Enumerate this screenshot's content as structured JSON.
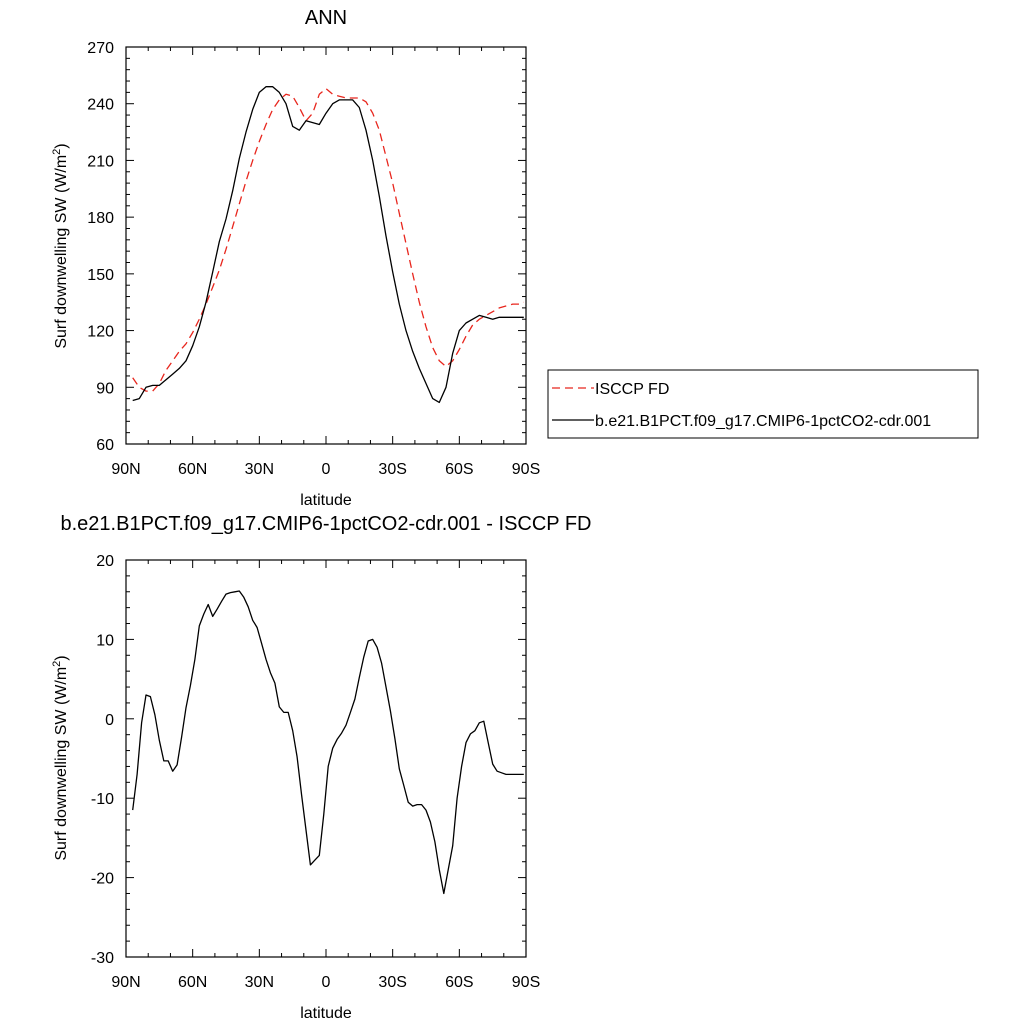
{
  "colors": {
    "obs": "#e8261d",
    "model": "#000000",
    "frame": "#000000"
  },
  "chart_data": [
    {
      "type": "line",
      "title": "ANN",
      "xlabel": "latitude",
      "ylabel": "Surf downwelling SW (W/m",
      "ylabel_superscript": "2",
      "ylabel_suffix": ")",
      "xlim": [
        90,
        -90
      ],
      "ylim": [
        60,
        270
      ],
      "xticks": [
        {
          "value": 90,
          "label": "90N"
        },
        {
          "value": 60,
          "label": "60N"
        },
        {
          "value": 30,
          "label": "30N"
        },
        {
          "value": 0,
          "label": "0"
        },
        {
          "value": -30,
          "label": "30S"
        },
        {
          "value": -60,
          "label": "60S"
        },
        {
          "value": -90,
          "label": "90S"
        }
      ],
      "yticks": [
        60,
        90,
        120,
        150,
        180,
        210,
        240,
        270
      ],
      "yticklabels": [
        "60",
        "90",
        "120",
        "150",
        "180",
        "210",
        "240",
        "270"
      ],
      "legend_position": "right",
      "series": [
        {
          "name": "ISCCP FD",
          "style": "dashed",
          "color": "#e8261d",
          "x": [
            87,
            84,
            81,
            78,
            75,
            72,
            69,
            66,
            63,
            60,
            57,
            54,
            51,
            48,
            45,
            42,
            39,
            36,
            33,
            30,
            27,
            24,
            21,
            18,
            15,
            12,
            9,
            6,
            3,
            0,
            -3,
            -6,
            -9,
            -12,
            -15,
            -18,
            -21,
            -24,
            -27,
            -30,
            -33,
            -36,
            -39,
            -42,
            -45,
            -48,
            -51,
            -54,
            -57,
            -60,
            -63,
            -66,
            -69,
            -72,
            -75,
            -78,
            -81,
            -84,
            -87,
            -89
          ],
          "y": [
            95,
            90,
            88,
            88,
            92,
            99,
            104,
            109,
            113,
            119,
            126,
            134,
            143,
            152,
            163,
            175,
            187,
            199,
            210,
            220,
            229,
            237,
            242,
            245,
            244,
            238,
            231,
            235,
            245,
            248,
            245,
            244,
            243,
            243,
            243,
            241,
            235,
            226,
            212,
            198,
            182,
            166,
            150,
            135,
            122,
            111,
            104,
            101,
            104,
            110,
            117,
            123,
            126,
            128,
            130,
            132,
            133,
            134,
            134,
            135
          ]
        },
        {
          "name": "b.e21.B1PCT.f09_g17.CMIP6-1pctCO2-cdr.001",
          "style": "solid",
          "color": "#000000",
          "x": [
            87,
            84,
            81,
            78,
            75,
            72,
            69,
            66,
            63,
            60,
            57,
            54,
            51,
            48,
            45,
            42,
            39,
            36,
            33,
            30,
            27,
            24,
            21,
            18,
            15,
            12,
            9,
            6,
            3,
            0,
            -3,
            -6,
            -9,
            -12,
            -15,
            -18,
            -21,
            -24,
            -27,
            -30,
            -33,
            -36,
            -39,
            -42,
            -45,
            -48,
            -51,
            -54,
            -57,
            -60,
            -63,
            -66,
            -69,
            -72,
            -75,
            -78,
            -81,
            -84,
            -87,
            -89
          ],
          "y": [
            83,
            84,
            90,
            91,
            91,
            94,
            97,
            100,
            104,
            112,
            122,
            135,
            151,
            167,
            179,
            194,
            211,
            225,
            237,
            246,
            249,
            249,
            246,
            240,
            228,
            226,
            231,
            230,
            229,
            235,
            240,
            242,
            242,
            242,
            238,
            226,
            210,
            191,
            170,
            151,
            134,
            120,
            109,
            100,
            92,
            84,
            82,
            90,
            108,
            120,
            124,
            126,
            128,
            127,
            126,
            127,
            127,
            127,
            127,
            127
          ]
        }
      ]
    },
    {
      "type": "line",
      "title": "b.e21.B1PCT.f09_g17.CMIP6-1pctCO2-cdr.001 - ISCCP FD",
      "xlabel": "latitude",
      "ylabel": "Surf downwelling SW (W/m",
      "ylabel_superscript": "2",
      "ylabel_suffix": ")",
      "xlim": [
        90,
        -90
      ],
      "ylim": [
        -30,
        20
      ],
      "xticks": [
        {
          "value": 90,
          "label": "90N"
        },
        {
          "value": 60,
          "label": "60N"
        },
        {
          "value": 30,
          "label": "30N"
        },
        {
          "value": 0,
          "label": "0"
        },
        {
          "value": -30,
          "label": "30S"
        },
        {
          "value": -60,
          "label": "60S"
        },
        {
          "value": -90,
          "label": "90S"
        }
      ],
      "yticks": [
        -30,
        -20,
        -10,
        0,
        10,
        20
      ],
      "yticklabels": [
        "-30",
        "-20",
        "-10",
        "0",
        "10",
        "20"
      ],
      "series": [
        {
          "name": "",
          "style": "solid",
          "color": "#000000",
          "x": [
            87,
            85,
            83,
            81,
            79,
            77,
            75,
            73,
            71,
            69,
            67,
            65,
            63,
            61,
            59,
            57,
            55,
            53,
            51,
            49,
            47,
            45,
            43,
            41,
            39,
            37,
            35,
            33,
            31,
            29,
            27,
            25,
            23,
            21,
            19,
            17,
            15,
            13,
            11,
            9,
            7,
            5,
            3,
            1,
            -1,
            -3,
            -5,
            -7,
            -9,
            -11,
            -13,
            -15,
            -17,
            -19,
            -21,
            -23,
            -25,
            -27,
            -29,
            -31,
            -33,
            -35,
            -37,
            -39,
            -41,
            -43,
            -45,
            -47,
            -49,
            -51,
            -53,
            -55,
            -57,
            -59,
            -61,
            -63,
            -65,
            -67,
            -69,
            -71,
            -73,
            -75,
            -77,
            -79,
            -81,
            -83,
            -85,
            -87,
            -89
          ],
          "y": [
            -11.5,
            -7,
            -0.5,
            3,
            2.8,
            0.5,
            -2.7,
            -5.3,
            -5.3,
            -6.6,
            -5.8,
            -2.3,
            1.4,
            4.2,
            7.5,
            11.7,
            13.2,
            14.4,
            12.9,
            13.8,
            14.8,
            15.7,
            15.9,
            16.0,
            16.1,
            15.3,
            14.1,
            12.4,
            11.5,
            9.5,
            7.5,
            5.8,
            4.5,
            1.5,
            0.8,
            0.8,
            -1.5,
            -4.8,
            -9.6,
            -14,
            -18.4,
            -17.8,
            -17.2,
            -12,
            -6,
            -3.7,
            -2.6,
            -1.8,
            -0.8,
            0.8,
            2.5,
            5.2,
            7.8,
            9.8,
            10.0,
            9.0,
            7.0,
            4.0,
            1.0,
            -2.5,
            -6.3,
            -8.4,
            -10.5,
            -11.0,
            -10.8,
            -10.8,
            -11.5,
            -13,
            -15.5,
            -19,
            -22,
            -19,
            -16,
            -10,
            -6,
            -3,
            -1.9,
            -1.5,
            -0.5,
            -0.3,
            -3,
            -5.7,
            -6.6,
            -6.8,
            -7.0,
            -7.0,
            -7.0,
            -7.0,
            -7.0
          ]
        }
      ]
    }
  ]
}
